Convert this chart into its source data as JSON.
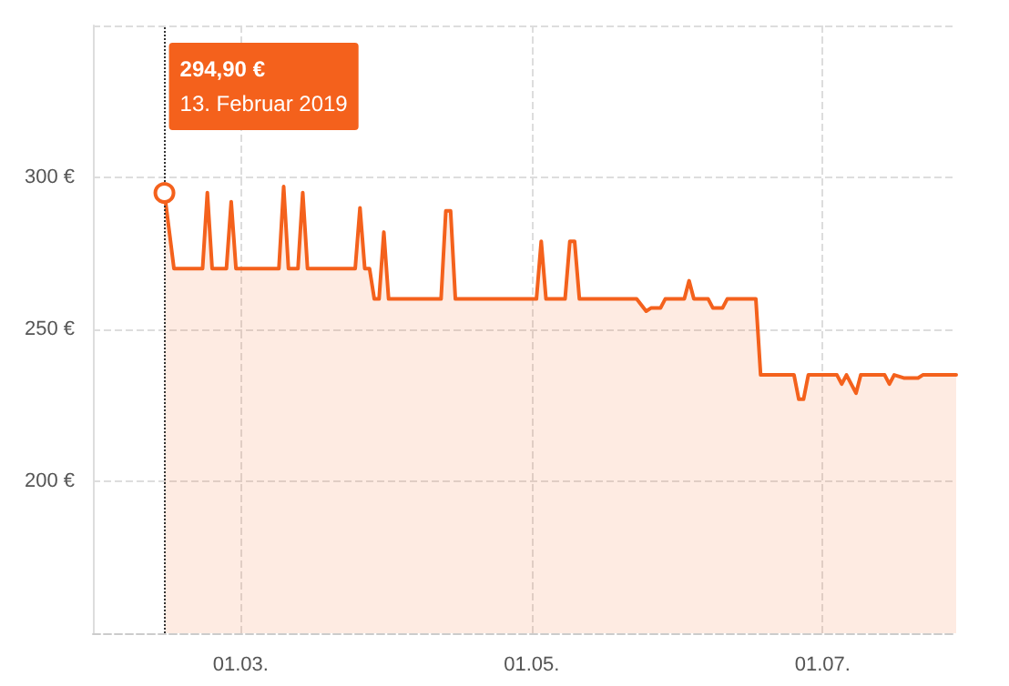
{
  "chart_data": {
    "type": "area",
    "x": [
      "2019-02-13",
      "2019-02-15",
      "2019-02-21",
      "2019-02-22",
      "2019-02-23",
      "2019-02-26",
      "2019-02-27",
      "2019-02-28",
      "2019-03-09",
      "2019-03-10",
      "2019-03-11",
      "2019-03-13",
      "2019-03-14",
      "2019-03-15",
      "2019-03-25",
      "2019-03-26",
      "2019-03-27",
      "2019-03-28",
      "2019-03-29",
      "2019-03-30",
      "2019-03-31",
      "2019-04-01",
      "2019-04-12",
      "2019-04-13",
      "2019-04-14",
      "2019-04-15",
      "2019-05-02",
      "2019-05-03",
      "2019-05-04",
      "2019-05-08",
      "2019-05-09",
      "2019-05-10",
      "2019-05-11",
      "2019-05-23",
      "2019-05-25",
      "2019-05-26",
      "2019-05-28",
      "2019-05-29",
      "2019-06-02",
      "2019-06-03",
      "2019-06-04",
      "2019-06-07",
      "2019-06-08",
      "2019-06-10",
      "2019-06-11",
      "2019-06-17",
      "2019-06-18",
      "2019-06-25",
      "2019-06-26",
      "2019-06-27",
      "2019-06-28",
      "2019-07-04",
      "2019-07-05",
      "2019-07-06",
      "2019-07-08",
      "2019-07-09",
      "2019-07-14",
      "2019-07-15",
      "2019-07-16",
      "2019-07-18",
      "2019-07-21",
      "2019-07-22",
      "2019-07-29"
    ],
    "series": [
      {
        "color": "#f4611c",
        "values": [
          294.9,
          270,
          270,
          295,
          270,
          270,
          292,
          270,
          270,
          297,
          270,
          270,
          295,
          270,
          270,
          290,
          270,
          270,
          260,
          260,
          282,
          260,
          260,
          289,
          289,
          260,
          260,
          279,
          260,
          260,
          279,
          279,
          260,
          260,
          256,
          257,
          257,
          260,
          260,
          266,
          260,
          260,
          257,
          257,
          260,
          260,
          235,
          235,
          227,
          227,
          235,
          235,
          232,
          235,
          229,
          235,
          235,
          232,
          235,
          234,
          234,
          235,
          235
        ]
      }
    ],
    "xlim": [
      "2019-01-29",
      "2019-07-29"
    ],
    "xticks": [
      {
        "value": "2019-03-01",
        "label": "01.03."
      },
      {
        "value": "2019-05-01",
        "label": "01.05."
      },
      {
        "value": "2019-07-01",
        "label": "01.07."
      }
    ],
    "ylim": [
      150,
      350
    ],
    "yticks": [
      {
        "value": 150,
        "label": null
      },
      {
        "value": 200,
        "label": "200 €"
      },
      {
        "value": 250,
        "label": "250 €"
      },
      {
        "value": 300,
        "label": "300 €"
      },
      {
        "value": 350,
        "label": null
      }
    ],
    "grid": true,
    "marker": "none",
    "line_style": "solid",
    "ref_lines": [
      {
        "axis": "x",
        "value": "2019-02-13",
        "label": null,
        "color": "#333333",
        "line_style": "dotted"
      }
    ],
    "annotations": [
      "294,90 €",
      "13. Februar 2019"
    ]
  }
}
